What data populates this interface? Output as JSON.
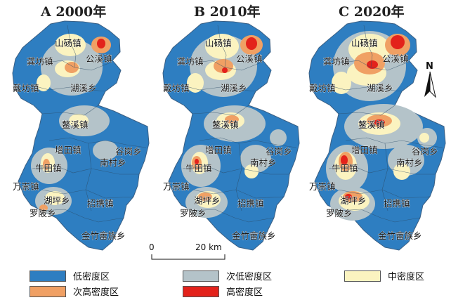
{
  "panels": [
    {
      "title": "A 2000年"
    },
    {
      "title": "B 2010年"
    },
    {
      "title": "C 2020年"
    }
  ],
  "places": {
    "shanyang": "山砀镇",
    "gongxi": "公溪镇",
    "gongfang": "龚坊镇",
    "daifang": "戴坊镇",
    "huxi": "湖溪乡",
    "aoxi": "鳌溪镇",
    "zengtian": "增田镇",
    "gugang": "谷岗乡",
    "nancun": "南村乡",
    "niutian": "牛田镇",
    "wanchong": "万崇镇",
    "huping": "湖坪乡",
    "luoling": "罗陂乡",
    "zhaoxie": "招携镇",
    "jinzhu": "金竹畲族乡"
  },
  "scale_bar": {
    "start": "0",
    "end": "20 km"
  },
  "north_label": "N",
  "legend": [
    {
      "label": "低密度区",
      "color": "#2e7ec1"
    },
    {
      "label": "次低密度区",
      "color": "#b4c3c9"
    },
    {
      "label": "中密度区",
      "color": "#fbf3c0"
    },
    {
      "label": "次高密度区",
      "color": "#f0a064"
    },
    {
      "label": "高密度区",
      "color": "#e3221b"
    }
  ]
}
